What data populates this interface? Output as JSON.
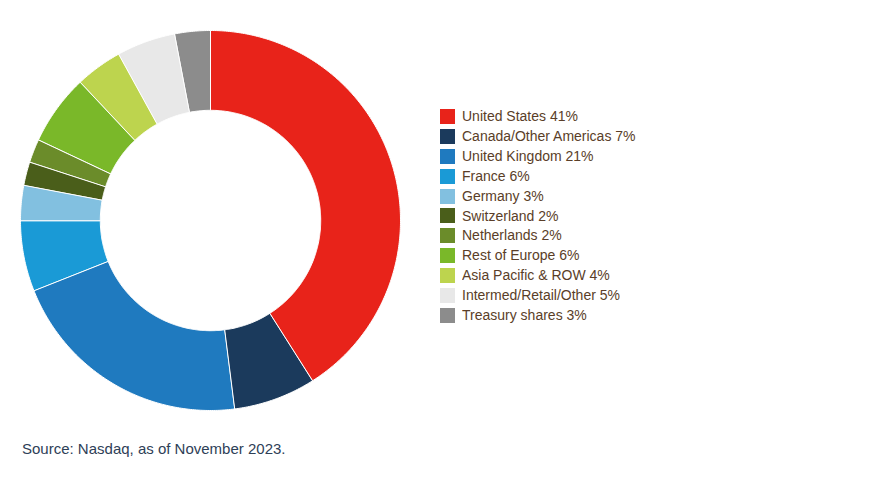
{
  "chart_data": {
    "type": "donut",
    "categories": [
      "United States 41%",
      "Canada/Other Americas 7%",
      "United Kingdom 21%",
      "France 6%",
      "Germany 3%",
      "Switzerland 2%",
      "Netherlands 2%",
      "Rest of Europe 6%",
      "Asia Pacific & ROW 4%",
      "Intermed/Retail/Other 5%",
      "Treasury shares 3%"
    ],
    "values": [
      41,
      7,
      21,
      6,
      3,
      2,
      2,
      6,
      4,
      5,
      3
    ],
    "colors": [
      "#E8231A",
      "#1B3A5C",
      "#1F7ABF",
      "#1A9AD6",
      "#82C0E0",
      "#4A5E1A",
      "#6B8C2A",
      "#7AB829",
      "#BDD44E",
      "#E8E8E8",
      "#8C8C8C"
    ],
    "caption": "Source: Nasdaq, as of November 2023.",
    "legend": "right"
  }
}
